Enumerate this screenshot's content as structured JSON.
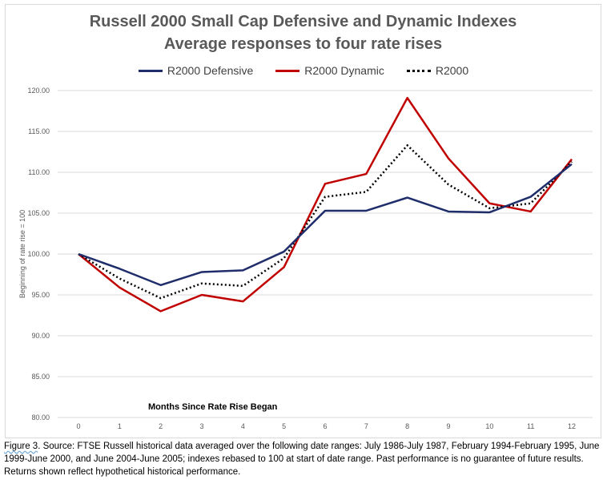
{
  "chart_data": {
    "type": "line",
    "title_line1": "Russell 2000 Small Cap Defensive and Dynamic Indexes",
    "title_line2": "Average responses to four rate rises",
    "xlabel": "Months Since Rate Rise Began",
    "ylabel": "Beginning of rate rise = 100",
    "ylim": [
      80,
      120
    ],
    "yticks": [
      "80.00",
      "85.00",
      "90.00",
      "95.00",
      "100.00",
      "105.00",
      "110.00",
      "115.00",
      "120.00"
    ],
    "x": [
      0,
      1,
      2,
      3,
      4,
      5,
      6,
      7,
      8,
      9,
      10,
      11,
      12
    ],
    "grid": true,
    "legend_position": "top",
    "series": [
      {
        "name": "R2000 Defensive",
        "color": "#1f2d6b",
        "style": "solid",
        "values": [
          100.0,
          98.2,
          96.2,
          97.8,
          98.0,
          100.3,
          105.3,
          105.3,
          106.9,
          105.2,
          105.1,
          107.0,
          111.0
        ]
      },
      {
        "name": "R2000 Dynamic",
        "color": "#c00000",
        "style": "solid",
        "values": [
          100.0,
          95.9,
          93.0,
          95.0,
          94.2,
          98.4,
          108.6,
          109.8,
          119.1,
          111.7,
          106.2,
          105.2,
          111.6
        ]
      },
      {
        "name": "R2000",
        "color": "#000000",
        "style": "dotted",
        "values": [
          100.0,
          97.0,
          94.6,
          96.4,
          96.1,
          99.5,
          107.0,
          107.6,
          113.3,
          108.5,
          105.6,
          106.2,
          111.3
        ]
      }
    ]
  },
  "caption": {
    "figure_label": "Figure 3",
    "text": ". Source: FTSE Russell historical data averaged over the following date ranges: July 1986-July 1987, February 1994-February 1995, June 1999-June 2000, and June 2004-June 2005; indexes rebased to 100 at start of date range. Past performance is no guarantee of future results. Returns shown reflect hypothetical historical performance."
  }
}
